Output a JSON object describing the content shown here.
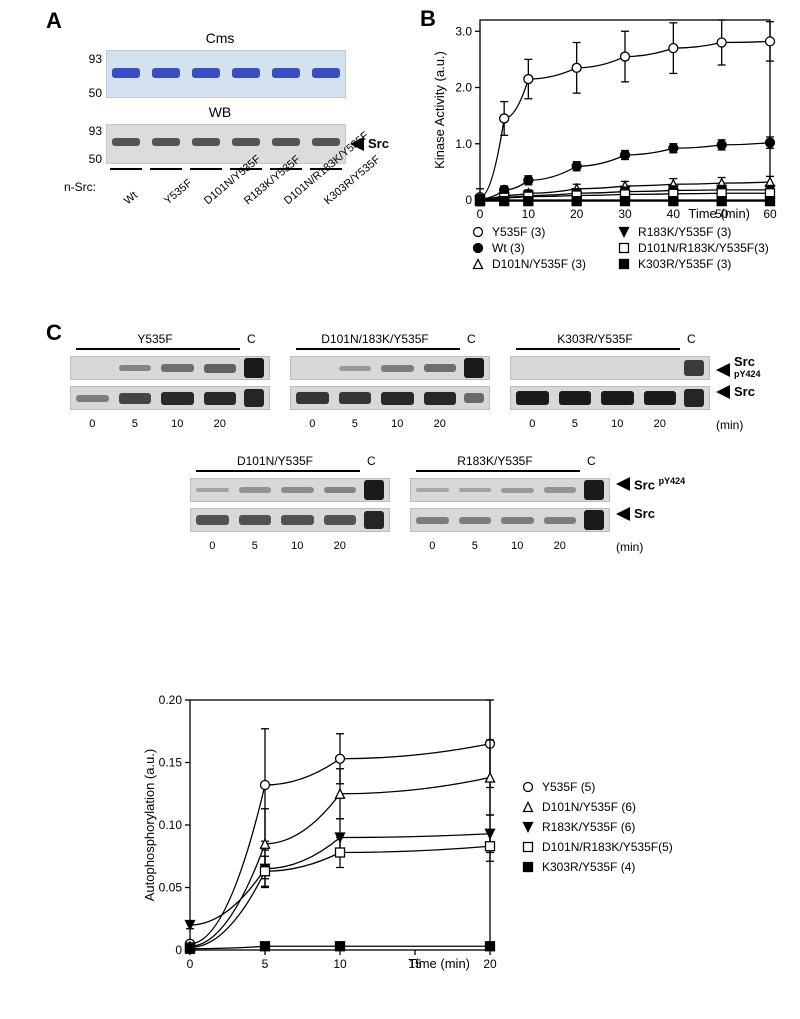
{
  "panelA": {
    "label": "A",
    "title_top": "Cms",
    "title_bottom": "WB",
    "mw_labels": [
      "93",
      "50"
    ],
    "row_label": "n-Src:",
    "lanes": [
      "Wt",
      "Y535F",
      "D101N/Y535F",
      "R183K/Y535F",
      "D101N/R183K/Y535F",
      "K303R/Y535F"
    ],
    "arrow_label": "Src",
    "gel_bg_top": "#d4e1f0",
    "gel_band_top": "#3a4fbf",
    "gel_bg_bottom": "#dcdcdc",
    "gel_band_bottom": "#555555"
  },
  "panelB": {
    "label": "B",
    "xlabel": "Time (min)",
    "ylabel": "Kinase Activity (a.u.)",
    "xlim": [
      0,
      60
    ],
    "ylim": [
      0,
      3.2
    ],
    "xticks": [
      0,
      10,
      20,
      30,
      40,
      50,
      60
    ],
    "yticks": [
      0,
      1.0,
      2.0,
      3.0
    ],
    "ytick_labels": [
      "0",
      "1.0",
      "2.0",
      "3.0"
    ],
    "series": [
      {
        "name": "Y535F (3)",
        "marker": "open-circle",
        "x": [
          0,
          5,
          10,
          20,
          30,
          40,
          50,
          60
        ],
        "y": [
          0.05,
          1.45,
          2.15,
          2.35,
          2.55,
          2.7,
          2.8,
          2.82
        ],
        "err": [
          0.15,
          0.3,
          0.35,
          0.45,
          0.45,
          0.45,
          0.4,
          0.35
        ]
      },
      {
        "name": "Wt (3)",
        "marker": "filled-circle",
        "x": [
          0,
          5,
          10,
          20,
          30,
          40,
          50,
          60
        ],
        "y": [
          0.02,
          0.18,
          0.35,
          0.6,
          0.8,
          0.92,
          0.98,
          1.02
        ],
        "err": [
          0.05,
          0.07,
          0.08,
          0.08,
          0.08,
          0.08,
          0.09,
          0.1
        ]
      },
      {
        "name": "D101N/Y535F (3)",
        "marker": "open-triangle",
        "x": [
          0,
          5,
          10,
          20,
          30,
          40,
          50,
          60
        ],
        "y": [
          0.02,
          0.08,
          0.12,
          0.2,
          0.25,
          0.28,
          0.3,
          0.32
        ],
        "err": [
          0.05,
          0.06,
          0.06,
          0.08,
          0.08,
          0.1,
          0.1,
          0.1
        ]
      },
      {
        "name": "R183K/Y535F (3)",
        "marker": "filled-triangle-down",
        "x": [
          0,
          5,
          10,
          20,
          30,
          40,
          50,
          60
        ],
        "y": [
          0.0,
          0.05,
          0.08,
          0.12,
          0.15,
          0.17,
          0.18,
          0.18
        ],
        "err": [
          0,
          0,
          0,
          0,
          0,
          0,
          0,
          0
        ]
      },
      {
        "name": "D101N/R183K/Y535F(3)",
        "marker": "open-square",
        "x": [
          0,
          5,
          10,
          20,
          30,
          40,
          50,
          60
        ],
        "y": [
          0.0,
          0.04,
          0.06,
          0.08,
          0.1,
          0.11,
          0.12,
          0.12
        ],
        "err": [
          0,
          0,
          0,
          0,
          0,
          0,
          0,
          0
        ]
      },
      {
        "name": "K303R/Y535F (3)",
        "marker": "filled-square",
        "x": [
          0,
          5,
          10,
          20,
          30,
          40,
          50,
          60
        ],
        "y": [
          -0.02,
          -0.02,
          -0.02,
          -0.02,
          -0.02,
          -0.02,
          -0.02,
          -0.02
        ],
        "err": [
          0,
          0,
          0,
          0,
          0,
          0,
          0,
          0
        ]
      }
    ],
    "legend_cols": [
      [
        "Y535F (3)",
        "Wt (3)",
        "D101N/Y535F (3)"
      ],
      [
        "R183K/Y535F (3)",
        "D101N/R183K/Y535F(3)",
        "K303R/Y535F (3)"
      ]
    ],
    "background": "#ffffff"
  },
  "panelC": {
    "label": "C",
    "row1": [
      {
        "title": "Y535F",
        "times": [
          "0",
          "5",
          "10",
          "20"
        ],
        "pY424": [
          0,
          0.25,
          0.4,
          0.5
        ],
        "src": [
          0.3,
          0.7,
          0.9,
          0.9
        ],
        "ctrl_pY424": 1.0,
        "ctrl_src": 0.9
      },
      {
        "title": "D101N/183K/Y535F",
        "times": [
          "0",
          "5",
          "10",
          "20"
        ],
        "pY424": [
          0,
          0.1,
          0.3,
          0.4
        ],
        "src": [
          0.8,
          0.8,
          0.9,
          0.9
        ],
        "ctrl_pY424": 1.0,
        "ctrl_src": 0.3
      },
      {
        "title": "K303R/Y535F",
        "times": [
          "0",
          "5",
          "10",
          "20"
        ],
        "pY424": [
          0,
          0,
          0,
          0
        ],
        "src": [
          1.0,
          1.0,
          1.0,
          1.0
        ],
        "ctrl_pY424": 0.7,
        "ctrl_src": 0.9
      }
    ],
    "row2": [
      {
        "title": "D101N/Y535F",
        "times": [
          "0",
          "5",
          "10",
          "20"
        ],
        "pY424": [
          0.05,
          0.15,
          0.2,
          0.25
        ],
        "src": [
          0.6,
          0.6,
          0.6,
          0.6
        ],
        "ctrl_pY424": 1.0,
        "ctrl_src": 0.9
      },
      {
        "title": "R183K/Y535F",
        "times": [
          "0",
          "5",
          "10",
          "20"
        ],
        "pY424": [
          0.02,
          0.05,
          0.1,
          0.15
        ],
        "src": [
          0.3,
          0.3,
          0.3,
          0.3
        ],
        "ctrl_pY424": 1.0,
        "ctrl_src": 1.0
      }
    ],
    "time_unit": "(min)",
    "arrow_pY424": "Src",
    "arrow_pY424_sup": "pY424",
    "arrow_src": "Src",
    "control_label": "C",
    "gel_bg": "#d8d8d8",
    "band_color": "#1a1a1a",
    "chart": {
      "xlabel": "Time (min)",
      "ylabel": "Autophosphorylation (a.u.)",
      "xlim": [
        0,
        20
      ],
      "ylim": [
        0,
        0.2
      ],
      "xticks": [
        0,
        5,
        10,
        15,
        20
      ],
      "yticks": [
        0,
        0.05,
        0.1,
        0.15,
        0.2
      ],
      "ytick_labels": [
        "0",
        "0.05",
        "0.10",
        "0.15",
        "0.20"
      ],
      "series": [
        {
          "name": "Y535F (5)",
          "marker": "open-circle",
          "x": [
            0,
            5,
            10,
            20
          ],
          "y": [
            0.005,
            0.132,
            0.153,
            0.165
          ],
          "err": [
            0.002,
            0.045,
            0.02,
            0.035
          ]
        },
        {
          "name": "D101N/Y535F (6)",
          "marker": "open-triangle",
          "x": [
            0,
            5,
            10,
            20
          ],
          "y": [
            0.003,
            0.085,
            0.125,
            0.138
          ],
          "err": [
            0.002,
            0.028,
            0.02,
            0.03
          ]
        },
        {
          "name": "R183K/Y535F (6)",
          "marker": "filled-triangle-down",
          "x": [
            0,
            5,
            10,
            20
          ],
          "y": [
            0.02,
            0.065,
            0.09,
            0.093
          ],
          "err": [
            0.003,
            0.015,
            0.015,
            0.015
          ]
        },
        {
          "name": "D101N/R183K/Y535F(5)",
          "marker": "open-square",
          "x": [
            0,
            5,
            10,
            20
          ],
          "y": [
            0.002,
            0.063,
            0.078,
            0.083
          ],
          "err": [
            0.002,
            0.012,
            0.012,
            0.012
          ]
        },
        {
          "name": "K303R/Y535F (4)",
          "marker": "filled-square",
          "x": [
            0,
            5,
            10,
            20
          ],
          "y": [
            0.001,
            0.003,
            0.003,
            0.003
          ],
          "err": [
            0.001,
            0.002,
            0.002,
            0.002
          ]
        }
      ]
    }
  }
}
